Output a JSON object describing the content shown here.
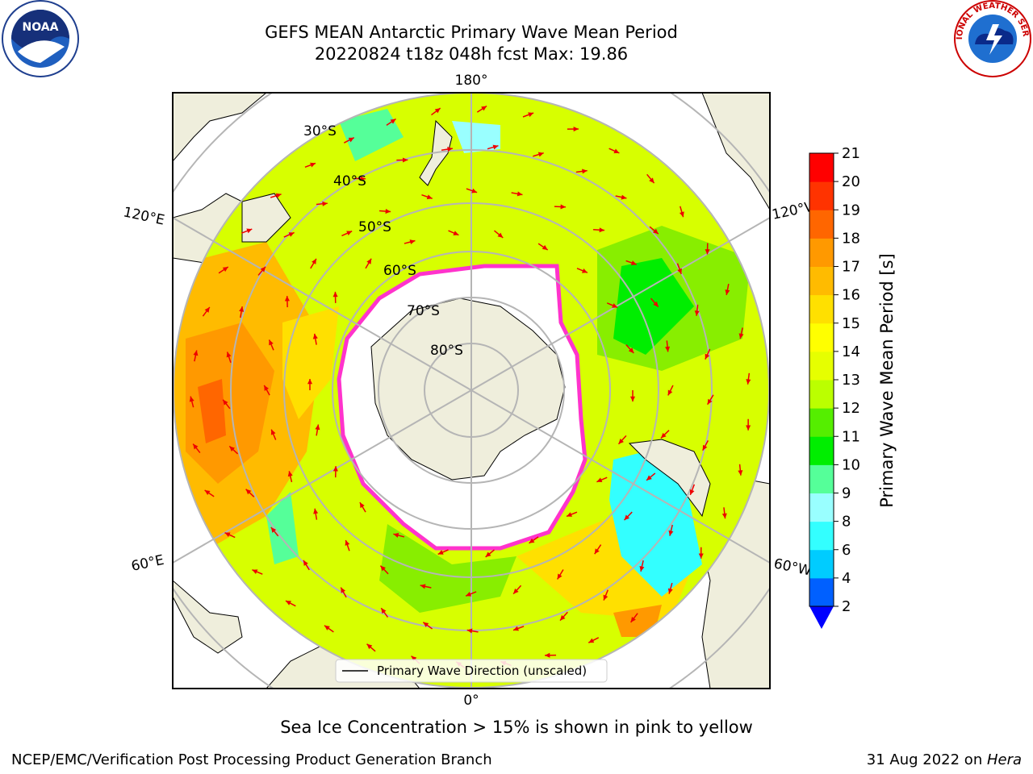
{
  "title": {
    "line1": "GEFS MEAN Antarctic Primary Wave Mean Period",
    "line2": "20220824 t18z 048h fcst   Max: 19.86"
  },
  "map": {
    "projection": "south-polar-stereographic",
    "lon_labels": {
      "top": "180°",
      "bottom": "0°",
      "left_upper": "120°E",
      "left_lower": "60°E",
      "right_upper": "120°W",
      "right_lower": "60°W"
    },
    "lat_labels": [
      "30°S",
      "40°S",
      "50°S",
      "60°S",
      "70°S",
      "80°S"
    ],
    "legend": "Primary Wave Direction (unscaled)"
  },
  "colorbar": {
    "label": "Primary Wave Mean Period [s]",
    "ticks": [
      "2",
      "4",
      "6",
      "8",
      "9",
      "10",
      "11",
      "12",
      "13",
      "14",
      "15",
      "16",
      "17",
      "18",
      "19",
      "20",
      "21"
    ],
    "colors": [
      "#0060ff",
      "#00ccff",
      "#33ffff",
      "#99ffff",
      "#55ff99",
      "#00ee00",
      "#55ee00",
      "#bbff00",
      "#e6ff00",
      "#ffff00",
      "#ffe000",
      "#ffbb00",
      "#ff9900",
      "#ff6600",
      "#ff3300",
      "#ff0000"
    ],
    "extend_color": "#0000ff"
  },
  "caption": "Sea Ice Concentration > 15% is shown in pink to yellow",
  "footer": {
    "left": "NCEP/EMC/Verification Post Processing Product Generation Branch",
    "right_date": "31 Aug 2022 on ",
    "right_machine": "Hera"
  },
  "logos": {
    "left": "noaa-logo",
    "right": "national-weather-service-logo",
    "right_text": "NATIONAL WEATHER SERVICE"
  }
}
